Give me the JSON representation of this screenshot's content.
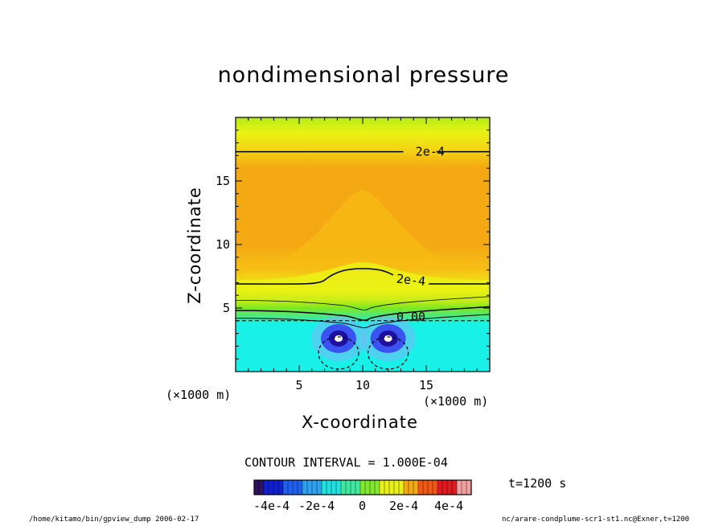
{
  "chart_data": {
    "type": "heatmap",
    "title": "nondimensional pressure",
    "xlabel": "X-coordinate",
    "ylabel": "Z-coordinate",
    "x_unit": "(×1000 m)",
    "y_unit": "(×1000 m)",
    "xlim": [
      0,
      20
    ],
    "ylim": [
      0,
      20
    ],
    "x_ticks": [
      5,
      10,
      15
    ],
    "y_ticks": [
      5,
      10,
      15
    ],
    "contour_labels": [
      {
        "text": "2e-4",
        "x": 15.3,
        "z": 17.3
      },
      {
        "text": "2e-4",
        "x": 13.8,
        "z": 7.2
      },
      {
        "text": "0.00",
        "x": 13.8,
        "z": 4.3
      }
    ],
    "negative_cores": [
      {
        "x": 8.1,
        "z": 2.6
      },
      {
        "x": 12.0,
        "z": 2.6
      }
    ],
    "contour_interval": "CONTOUR INTERVAL = 1.000E-04",
    "colorbar": {
      "range": [
        -0.0005,
        0.0005
      ],
      "tick_labels": [
        "-4e-4",
        "-2e-4",
        "0",
        "2e-4",
        "4e-4"
      ]
    },
    "time_label": "t=1200 s",
    "grid": false,
    "legend": "colorbar-bottom"
  },
  "footer": {
    "left": "/home/kitamo/bin/gpview_dump  2006-02-17",
    "right": "nc/arare-condplume-scr1-st1.nc@Exner,t=1200"
  },
  "colors": {
    "cyan": "#18f0e8",
    "green": "#7be820",
    "yellow": "#eaf214",
    "orange": "#f4a812",
    "blue": "#3a52f0"
  }
}
